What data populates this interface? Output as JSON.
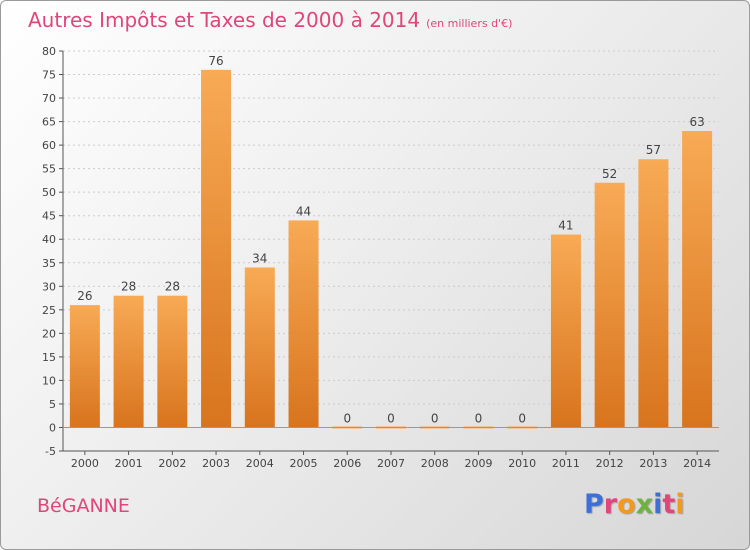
{
  "header": {
    "title": "Autres Impôts et Taxes de 2000 à 2014",
    "unit": "(en milliers d'€)"
  },
  "footer": {
    "commune": "BéGANNE",
    "brand": "Proxiti",
    "brand_colors": [
      "#3c6fd8",
      "#e0457b",
      "#f39a1e",
      "#6db33f",
      "#3c6fd8",
      "#e0457b",
      "#f39a1e"
    ]
  },
  "colors": {
    "title": "#e0457b",
    "bar_top": "#f8aa55",
    "bar_bottom": "#d8741e",
    "axis": "#555555",
    "grid": "#cccccc"
  },
  "chart_data": {
    "type": "bar",
    "title": "Autres Impôts et Taxes de 2000 à 2014",
    "xlabel": "",
    "ylabel": "",
    "categories": [
      "2000",
      "2001",
      "2002",
      "2003",
      "2004",
      "2005",
      "2006",
      "2007",
      "2008",
      "2009",
      "2010",
      "2011",
      "2012",
      "2013",
      "2014"
    ],
    "values": [
      26,
      28,
      28,
      76,
      34,
      44,
      0,
      0,
      0,
      0,
      0,
      41,
      52,
      57,
      63
    ],
    "data_labels": [
      "26",
      "28",
      "28",
      "76",
      "34",
      "44",
      "0",
      "0",
      "0",
      "0",
      "0",
      "41",
      "52",
      "57",
      "63"
    ],
    "ylim": [
      -5,
      80
    ],
    "yticks": [
      -5,
      0,
      5,
      10,
      15,
      20,
      25,
      30,
      35,
      40,
      45,
      50,
      55,
      60,
      65,
      70,
      75,
      80
    ],
    "ytick_labels": [
      "-5",
      "0",
      "5",
      "10",
      "15",
      "20",
      "25",
      "30",
      "35",
      "40",
      "45",
      "50",
      "55",
      "60",
      "65",
      "70",
      "75",
      "80"
    ],
    "grid": true
  }
}
